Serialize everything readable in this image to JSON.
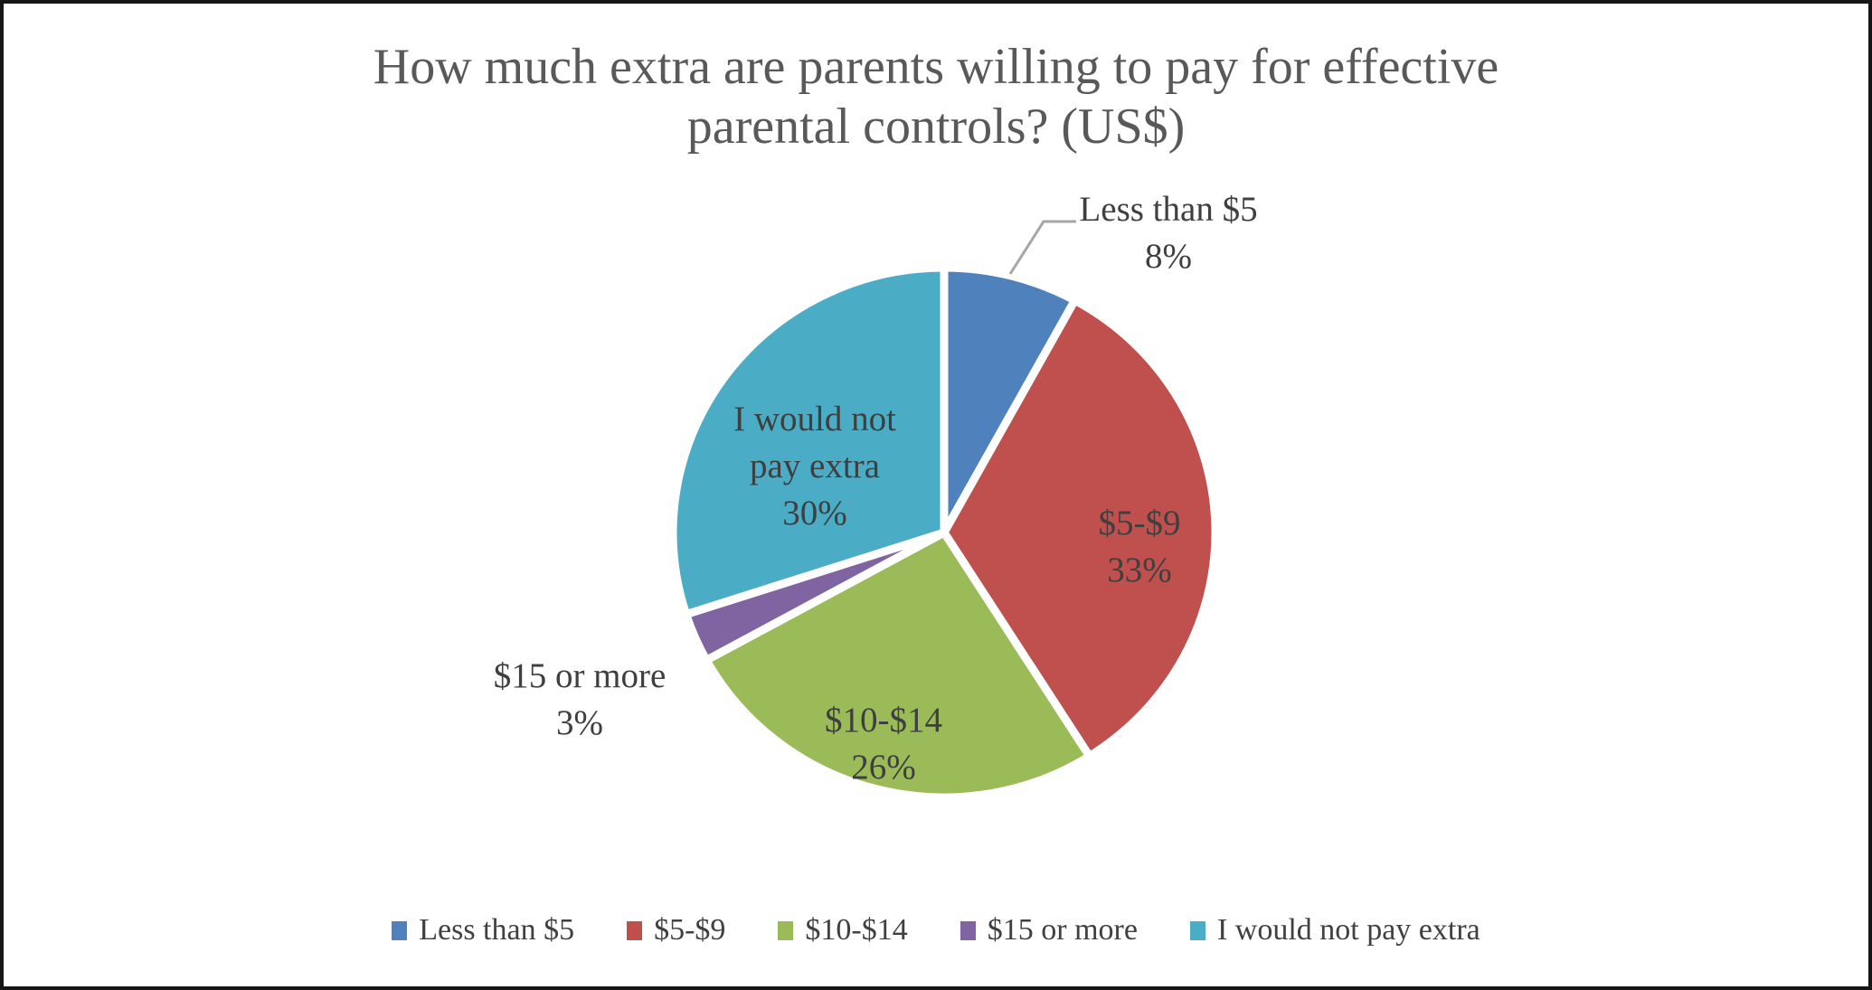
{
  "title": {
    "line1": "How much extra are parents willing to pay for effective",
    "line2": "parental controls? (US$)"
  },
  "chart_data": {
    "type": "pie",
    "title": "How much extra are parents willing to pay for effective parental controls? (US$)",
    "categories": [
      "Less than $5",
      "$5-$9",
      "$10-$14",
      "$15 or more",
      "I would not pay extra"
    ],
    "values": [
      8,
      33,
      26,
      3,
      30
    ],
    "value_unit": "percent",
    "colors": [
      "#4F81BD",
      "#C0504D",
      "#9BBB59",
      "#8064A2",
      "#4BACC6"
    ],
    "start_angle_deg": 0,
    "direction": "clockwise",
    "slice_gap_color": "#ffffff",
    "legend_position": "bottom",
    "data_labels": "category name + percentage"
  },
  "labels": {
    "slice0": {
      "line1": "Less than $5",
      "pct": "8%"
    },
    "slice1": {
      "line1": "$5-$9",
      "pct": "33%"
    },
    "slice2": {
      "line1": "$10-$14",
      "pct": "26%"
    },
    "slice3": {
      "line1": "$15 or more",
      "pct": "3%"
    },
    "slice4": {
      "line1": "I would not",
      "line2": "pay extra",
      "pct": "30%"
    }
  },
  "legend": {
    "items": [
      {
        "label": "Less than $5",
        "color": "#4F81BD"
      },
      {
        "label": "$5-$9",
        "color": "#C0504D"
      },
      {
        "label": "$10-$14",
        "color": "#9BBB59"
      },
      {
        "label": "$15 or more",
        "color": "#8064A2"
      },
      {
        "label": "I would not pay extra",
        "color": "#4BACC6"
      }
    ]
  },
  "style": {
    "title_color": "#595959",
    "label_color": "#3f3f3f",
    "leader_line_color": "#A6A6A6",
    "frame_border_color": "#161616"
  }
}
